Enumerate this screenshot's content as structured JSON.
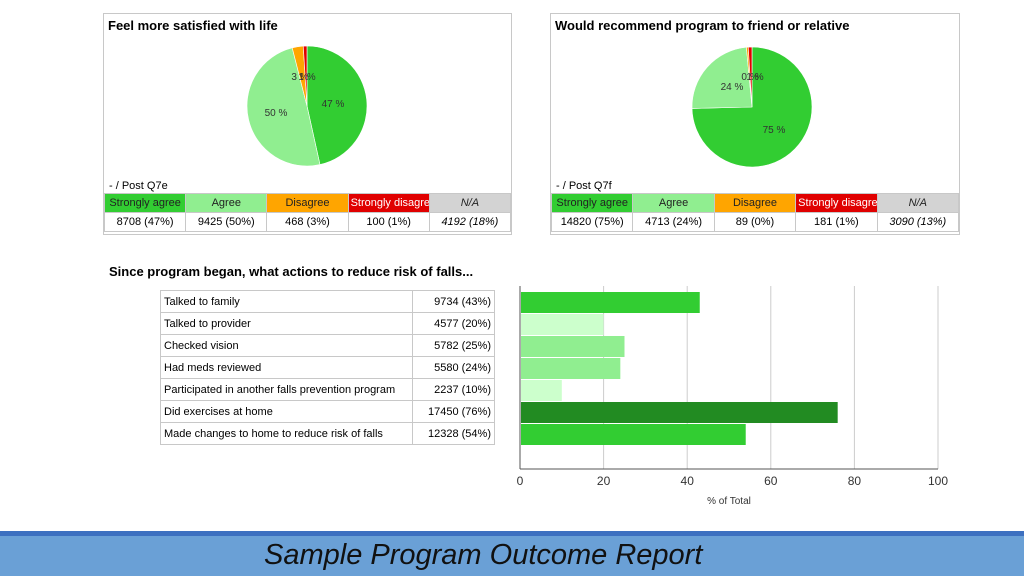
{
  "chart_data": [
    {
      "type": "pie",
      "title": "Feel more satisfied with life",
      "subtitle": "-  / Post Q7e",
      "labels": [
        "Strongly agree",
        "Agree",
        "Disagree",
        "Strongly disagree"
      ],
      "values": [
        47,
        50,
        3,
        1
      ],
      "slice_labels": [
        "47 %",
        "50 %",
        "3 %",
        "1 %"
      ],
      "colors": [
        "#32cd32",
        "#90ee90",
        "#ffa500",
        "#e00000"
      ],
      "legend": [
        {
          "label": "Strongly agree",
          "count": "8708 (47%)",
          "color": "#32cd32"
        },
        {
          "label": "Agree",
          "count": "9425 (50%)",
          "color": "#90ee90"
        },
        {
          "label": "Disagree",
          "count": "468 (3%)",
          "color": "#ffa500"
        },
        {
          "label": "Strongly disagree",
          "count": "100 (1%)",
          "color": "#e00000"
        },
        {
          "label": "N/A",
          "count": "4192 (18%)",
          "color": "#d3d3d3"
        }
      ]
    },
    {
      "type": "pie",
      "title": "Would recommend program to friend or relative",
      "subtitle": "-  / Post Q7f",
      "labels": [
        "Strongly agree",
        "Agree",
        "Disagree",
        "Strongly disagree"
      ],
      "values": [
        75,
        24,
        0.5,
        1
      ],
      "slice_labels": [
        "75 %",
        "24 %",
        "0 %",
        "1 %"
      ],
      "colors": [
        "#32cd32",
        "#90ee90",
        "#ffa500",
        "#e00000"
      ],
      "legend": [
        {
          "label": "Strongly agree",
          "count": "14820 (75%)",
          "color": "#32cd32"
        },
        {
          "label": "Agree",
          "count": "4713 (24%)",
          "color": "#90ee90"
        },
        {
          "label": "Disagree",
          "count": "89 (0%)",
          "color": "#ffa500"
        },
        {
          "label": "Strongly disagree",
          "count": "181 (1%)",
          "color": "#e00000"
        },
        {
          "label": "N/A",
          "count": "3090 (13%)",
          "color": "#d3d3d3"
        }
      ]
    },
    {
      "type": "bar",
      "orientation": "horizontal",
      "title": "Since program began, what actions to reduce risk of falls...",
      "categories": [
        "Talked to family",
        "Talked to provider",
        "Checked vision",
        "Had meds reviewed",
        "Participated in another falls prevention program",
        "Did exercises at home",
        "Made changes to home to reduce risk of falls"
      ],
      "values": [
        43,
        20,
        25,
        24,
        10,
        76,
        54
      ],
      "counts": [
        "9734 (43%)",
        "4577 (20%)",
        "5782 (25%)",
        "5580 (24%)",
        "2237 (10%)",
        "17450 (76%)",
        "12328 (54%)"
      ],
      "colors": [
        "#32cd32",
        "#ccffcc",
        "#90ee90",
        "#90ee90",
        "#ccffcc",
        "#228b22",
        "#32cd32"
      ],
      "xlabel": "% of Total",
      "xlim": [
        0,
        100
      ],
      "xticks": [
        "0",
        "20",
        "40",
        "60",
        "80",
        "100"
      ]
    }
  ],
  "footer": {
    "title": "Sample Program Outcome Report"
  }
}
